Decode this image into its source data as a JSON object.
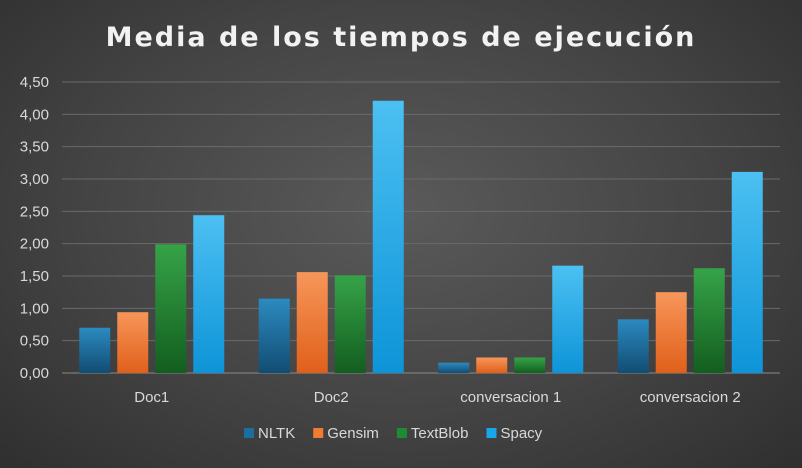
{
  "chart_data": {
    "type": "bar",
    "title": "Media de los tiempos de ejecución",
    "xlabel": "",
    "ylabel": "",
    "categories": [
      "Doc1",
      "Doc2",
      "conversacion 1",
      "conversacion 2"
    ],
    "ylim": [
      0,
      4.5
    ],
    "yticks": [
      "0,00",
      "0,50",
      "1,00",
      "1,50",
      "2,00",
      "2,50",
      "3,00",
      "3,50",
      "4,00",
      "4,50"
    ],
    "grid": true,
    "legend_position": "bottom",
    "series": [
      {
        "name": "NLTK",
        "color": "#1b6f9e",
        "values": [
          0.7,
          1.15,
          0.16,
          0.83
        ]
      },
      {
        "name": "Gensim",
        "color": "#f07c34",
        "values": [
          0.94,
          1.56,
          0.24,
          1.25
        ]
      },
      {
        "name": "TextBlob",
        "color": "#1e8a33",
        "values": [
          1.99,
          1.51,
          0.24,
          1.62
        ]
      },
      {
        "name": "Spacy",
        "color": "#18a7e8",
        "values": [
          2.44,
          4.21,
          1.66,
          3.11
        ]
      }
    ]
  }
}
